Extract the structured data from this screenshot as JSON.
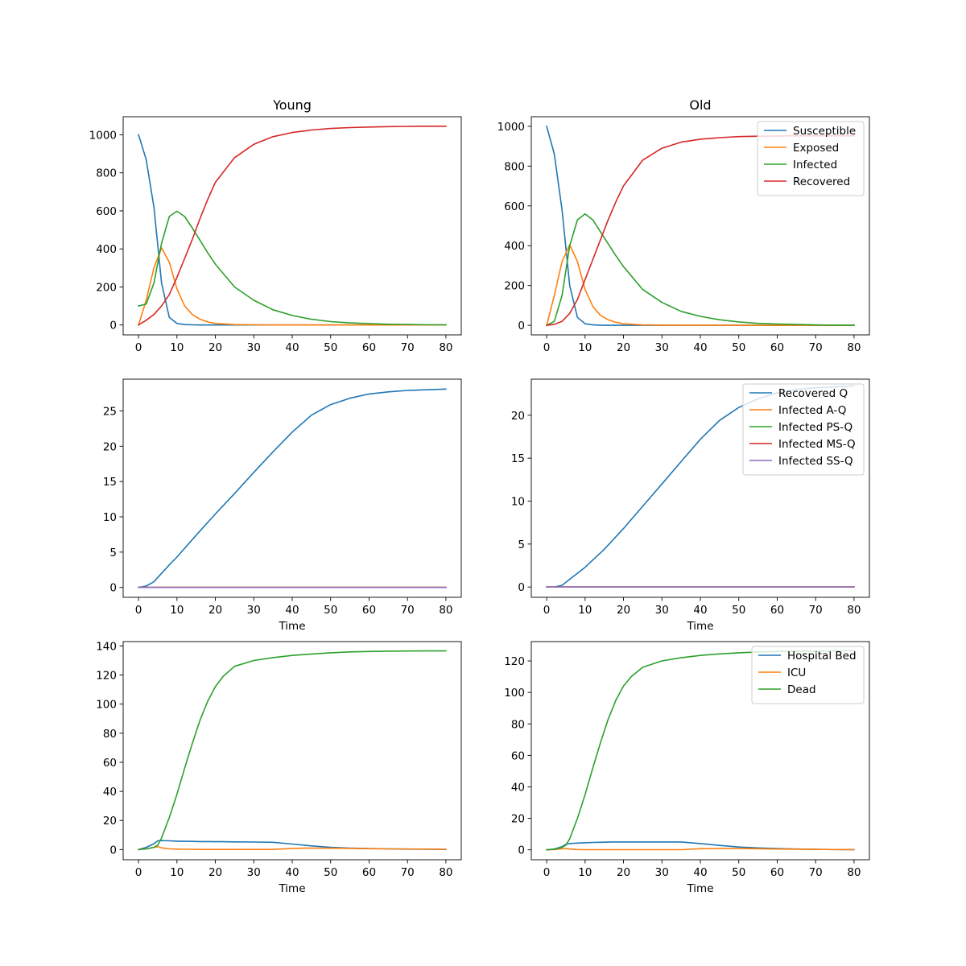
{
  "chart_data": [
    {
      "type": "line",
      "title": "Young",
      "xlabel": "",
      "ylabel": "",
      "xlim": [
        -4,
        84
      ],
      "ylim": [
        -52,
        1095
      ],
      "xticks": [
        0,
        10,
        20,
        30,
        40,
        50,
        60,
        70,
        80
      ],
      "yticks": [
        0,
        200,
        400,
        600,
        800,
        1000
      ],
      "legend": null,
      "x": [
        0,
        2,
        4,
        6,
        8,
        10,
        12,
        14,
        16,
        18,
        20,
        25,
        30,
        35,
        40,
        45,
        50,
        55,
        60,
        65,
        70,
        75,
        80
      ],
      "series": [
        {
          "name": "Susceptible",
          "color": "#1f77b4",
          "values": [
            1000,
            870,
            620,
            220,
            40,
            8,
            2,
            1,
            0,
            0,
            0,
            0,
            0,
            0,
            0,
            0,
            0,
            0,
            0,
            0,
            0,
            0,
            0
          ]
        },
        {
          "name": "Exposed",
          "color": "#ff7f0e",
          "values": [
            0,
            130,
            300,
            405,
            330,
            190,
            100,
            55,
            30,
            16,
            8,
            2,
            1,
            0,
            0,
            0,
            0,
            0,
            0,
            0,
            0,
            0,
            0
          ]
        },
        {
          "name": "Infected",
          "color": "#2ca02c",
          "values": [
            100,
            110,
            220,
            430,
            570,
            598,
            570,
            510,
            445,
            380,
            320,
            200,
            130,
            80,
            50,
            30,
            18,
            11,
            7,
            4,
            3,
            1,
            1
          ]
        },
        {
          "name": "Recovered",
          "color": "#d62728",
          "values": [
            0,
            25,
            55,
            100,
            160,
            250,
            350,
            450,
            560,
            660,
            750,
            880,
            950,
            990,
            1012,
            1025,
            1033,
            1038,
            1041,
            1043,
            1044,
            1045,
            1045
          ]
        }
      ]
    },
    {
      "type": "line",
      "title": "Old",
      "xlabel": "",
      "ylabel": "",
      "xlim": [
        -4,
        84
      ],
      "ylim": [
        -48,
        1048
      ],
      "xticks": [
        0,
        10,
        20,
        30,
        40,
        50,
        60,
        70,
        80
      ],
      "yticks": [
        0,
        200,
        400,
        600,
        800,
        1000
      ],
      "legend": "top-right",
      "x": [
        0,
        2,
        4,
        6,
        8,
        10,
        12,
        14,
        16,
        18,
        20,
        25,
        30,
        35,
        40,
        45,
        50,
        55,
        60,
        65,
        70,
        75,
        80
      ],
      "series": [
        {
          "name": "Susceptible",
          "color": "#1f77b4",
          "values": [
            1000,
            860,
            580,
            200,
            40,
            8,
            2,
            1,
            0,
            0,
            0,
            0,
            0,
            0,
            0,
            0,
            0,
            0,
            0,
            0,
            0,
            0,
            0
          ]
        },
        {
          "name": "Exposed",
          "color": "#ff7f0e",
          "values": [
            0,
            150,
            320,
            405,
            320,
            180,
            95,
            50,
            28,
            15,
            8,
            2,
            1,
            0,
            0,
            0,
            0,
            0,
            0,
            0,
            0,
            0,
            0
          ]
        },
        {
          "name": "Infected",
          "color": "#2ca02c",
          "values": [
            0,
            20,
            150,
            400,
            530,
            560,
            530,
            470,
            410,
            350,
            295,
            180,
            115,
            70,
            45,
            28,
            17,
            10,
            6,
            4,
            2,
            1,
            1
          ]
        },
        {
          "name": "Recovered",
          "color": "#d62728",
          "values": [
            0,
            5,
            20,
            60,
            130,
            230,
            330,
            430,
            530,
            620,
            700,
            830,
            890,
            920,
            935,
            943,
            948,
            950,
            951,
            952,
            952,
            952,
            952
          ]
        }
      ]
    },
    {
      "type": "line",
      "title": "",
      "xlabel": "Time",
      "ylabel": "",
      "xlim": [
        -4,
        84
      ],
      "ylim": [
        -1.4,
        29.5
      ],
      "xticks": [
        0,
        10,
        20,
        30,
        40,
        50,
        60,
        70,
        80
      ],
      "yticks": [
        0,
        5,
        10,
        15,
        20,
        25
      ],
      "legend": null,
      "x": [
        0,
        2,
        4,
        6,
        8,
        10,
        15,
        20,
        25,
        30,
        35,
        40,
        45,
        50,
        55,
        60,
        65,
        70,
        75,
        80
      ],
      "series": [
        {
          "name": "Recovered Q",
          "color": "#1f77b4",
          "values": [
            0,
            0.2,
            0.8,
            2.0,
            3.2,
            4.3,
            7.4,
            10.4,
            13.3,
            16.3,
            19.2,
            22.0,
            24.4,
            25.9,
            26.8,
            27.4,
            27.7,
            27.9,
            28.0,
            28.1
          ]
        },
        {
          "name": "Infected A-Q",
          "color": "#ff7f0e",
          "values": [
            0,
            0,
            0,
            0,
            0,
            0,
            0,
            0,
            0,
            0,
            0,
            0,
            0,
            0,
            0,
            0,
            0,
            0,
            0,
            0
          ]
        },
        {
          "name": "Infected PS-Q",
          "color": "#2ca02c",
          "values": [
            0,
            0,
            0,
            0,
            0,
            0,
            0,
            0,
            0,
            0,
            0,
            0,
            0,
            0,
            0,
            0,
            0,
            0,
            0,
            0
          ]
        },
        {
          "name": "Infected MS-Q",
          "color": "#d62728",
          "values": [
            0,
            0,
            0,
            0,
            0,
            0,
            0,
            0,
            0,
            0,
            0,
            0,
            0,
            0,
            0,
            0,
            0,
            0,
            0,
            0
          ]
        },
        {
          "name": "Infected SS-Q",
          "color": "#9467bd",
          "values": [
            0,
            0,
            0,
            0,
            0,
            0,
            0,
            0,
            0,
            0,
            0,
            0,
            0,
            0,
            0,
            0,
            0,
            0,
            0,
            0
          ]
        }
      ]
    },
    {
      "type": "line",
      "title": "",
      "xlabel": "Time",
      "ylabel": "",
      "xlim": [
        -4,
        84
      ],
      "ylim": [
        -1.2,
        24.2
      ],
      "xticks": [
        0,
        10,
        20,
        30,
        40,
        50,
        60,
        70,
        80
      ],
      "yticks": [
        0,
        5,
        10,
        15,
        20
      ],
      "legend": "top-right",
      "x": [
        0,
        2,
        4,
        6,
        8,
        10,
        15,
        20,
        25,
        30,
        35,
        40,
        45,
        50,
        55,
        60,
        65,
        70,
        75,
        80
      ],
      "series": [
        {
          "name": "Recovered Q",
          "color": "#1f77b4",
          "values": [
            0,
            0,
            0.2,
            0.9,
            1.6,
            2.3,
            4.4,
            6.8,
            9.4,
            12.0,
            14.6,
            17.2,
            19.4,
            20.9,
            21.9,
            22.6,
            23.0,
            23.2,
            23.3,
            23.4
          ]
        },
        {
          "name": "Infected A-Q",
          "color": "#ff7f0e",
          "values": [
            0,
            0,
            0,
            0,
            0,
            0,
            0,
            0,
            0,
            0,
            0,
            0,
            0,
            0,
            0,
            0,
            0,
            0,
            0,
            0
          ]
        },
        {
          "name": "Infected PS-Q",
          "color": "#2ca02c",
          "values": [
            0,
            0,
            0,
            0,
            0,
            0,
            0,
            0,
            0,
            0,
            0,
            0,
            0,
            0,
            0,
            0,
            0,
            0,
            0,
            0
          ]
        },
        {
          "name": "Infected MS-Q",
          "color": "#d62728",
          "values": [
            0,
            0,
            0,
            0,
            0,
            0,
            0,
            0,
            0,
            0,
            0,
            0,
            0,
            0,
            0,
            0,
            0,
            0,
            0,
            0
          ]
        },
        {
          "name": "Infected SS-Q",
          "color": "#9467bd",
          "values": [
            0,
            0,
            0,
            0,
            0,
            0,
            0,
            0,
            0,
            0,
            0,
            0,
            0,
            0,
            0,
            0,
            0,
            0,
            0,
            0
          ]
        }
      ]
    },
    {
      "type": "line",
      "title": "",
      "xlabel": "Time",
      "ylabel": "",
      "xlim": [
        -4,
        84
      ],
      "ylim": [
        -7,
        143
      ],
      "xticks": [
        0,
        10,
        20,
        30,
        40,
        50,
        60,
        70,
        80
      ],
      "yticks": [
        0,
        20,
        40,
        60,
        80,
        100,
        120,
        140
      ],
      "legend": null,
      "x": [
        0,
        2,
        4,
        5,
        6,
        8,
        10,
        12,
        14,
        16,
        18,
        20,
        22,
        25,
        30,
        35,
        40,
        45,
        50,
        55,
        60,
        65,
        70,
        75,
        80
      ],
      "series": [
        {
          "name": "Hospital Bed",
          "color": "#1f77b4",
          "values": [
            0,
            1.5,
            4,
            6,
            6.2,
            6.0,
            5.8,
            5.7,
            5.6,
            5.5,
            5.5,
            5.4,
            5.4,
            5.3,
            5.2,
            5.0,
            3.8,
            2.5,
            1.5,
            1.0,
            0.7,
            0.5,
            0.3,
            0.2,
            0.1
          ]
        },
        {
          "name": "ICU",
          "color": "#ff7f0e",
          "values": [
            0,
            0.5,
            1.5,
            2.0,
            1.2,
            0.5,
            0.3,
            0.2,
            0.2,
            0.1,
            0.1,
            0.1,
            0.1,
            0.1,
            0.1,
            0.1,
            0.8,
            1.0,
            0.9,
            0.8,
            0.6,
            0.5,
            0.4,
            0.3,
            0.2
          ]
        },
        {
          "name": "Dead",
          "color": "#2ca02c",
          "values": [
            0,
            0.5,
            1.5,
            3,
            8,
            22,
            38,
            56,
            73,
            89,
            102,
            112,
            119,
            126,
            130,
            132,
            133.5,
            134.5,
            135.3,
            135.9,
            136.2,
            136.4,
            136.5,
            136.6,
            136.6
          ]
        }
      ]
    },
    {
      "type": "line",
      "title": "",
      "xlabel": "Time",
      "ylabel": "",
      "xlim": [
        -4,
        84
      ],
      "ylim": [
        -6.3,
        132.3
      ],
      "xticks": [
        0,
        10,
        20,
        30,
        40,
        50,
        60,
        70,
        80
      ],
      "yticks": [
        0,
        20,
        40,
        60,
        80,
        100,
        120
      ],
      "legend": "top-right",
      "x": [
        0,
        2,
        4,
        5,
        6,
        8,
        10,
        12,
        14,
        16,
        18,
        20,
        22,
        25,
        30,
        35,
        40,
        45,
        50,
        55,
        60,
        65,
        70,
        75,
        80
      ],
      "series": [
        {
          "name": "Hospital Bed",
          "color": "#1f77b4",
          "values": [
            0,
            0.5,
            2,
            3.5,
            4.0,
            4.3,
            4.5,
            4.7,
            4.8,
            4.9,
            5.0,
            5.0,
            5.0,
            5.0,
            5.0,
            5.0,
            4.0,
            2.8,
            1.8,
            1.2,
            0.8,
            0.5,
            0.3,
            0.2,
            0.1
          ]
        },
        {
          "name": "ICU",
          "color": "#ff7f0e",
          "values": [
            0,
            0.2,
            0.6,
            0.8,
            0.5,
            0.2,
            0.1,
            0.1,
            0.1,
            0.1,
            0.1,
            0.1,
            0.1,
            0.1,
            0.1,
            0.1,
            0.7,
            0.8,
            0.8,
            0.7,
            0.5,
            0.4,
            0.3,
            0.2,
            0.1
          ]
        },
        {
          "name": "Dead",
          "color": "#2ca02c",
          "values": [
            0,
            0.3,
            1.5,
            3,
            7,
            20,
            35,
            52,
            68,
            83,
            95,
            104,
            110,
            116,
            120,
            122,
            123.5,
            124.5,
            125.2,
            125.7,
            126,
            126.2,
            126.3,
            126.4,
            126.5
          ]
        }
      ]
    }
  ]
}
